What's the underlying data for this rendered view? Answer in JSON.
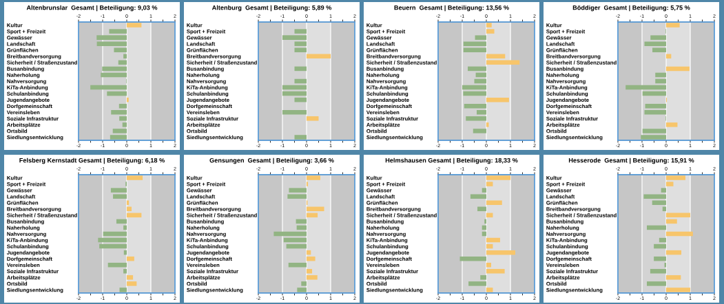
{
  "chart_data": [
    {
      "type": "bar",
      "orientation": "horizontal",
      "title": "Altenbrunslar  Gesamt | Beteiligung: 9,03 %",
      "categories": [
        "Kultur",
        "Sport + Freizeit",
        "Gewässer",
        "Landschaft",
        "Grünflächen",
        "Breitbandversorgung",
        "Sicherheit / Straßenzustand",
        "Busanbindung",
        "Naherholung",
        "Nahversorgung",
        "KiTa-Anbindung",
        "Schulanbindung",
        "Jugendangebote",
        "Dorfgemeinschaft",
        "Vereinsleben",
        "Soziale Infrastruktur",
        "Arbeitsplätze",
        "Ortsbild",
        "Siedlungsentwicklung"
      ],
      "values": [
        0.61,
        -0.73,
        -1.25,
        -1.24,
        -0.53,
        -0.14,
        -0.35,
        -1.02,
        -1.08,
        -0.02,
        -1.51,
        -0.82,
        0.08,
        -0.32,
        -0.65,
        -0.31,
        -0.18,
        -0.58,
        -0.69
      ],
      "colors": [
        "#f7c56b",
        "#92b483",
        "#92b483",
        "#92b483",
        "#92b483",
        "#92b483",
        "#92b483",
        "#92b483",
        "#92b483",
        "#92b483",
        "#92b483",
        "#92b483",
        "#f7c56b",
        "#92b483",
        "#92b483",
        "#92b483",
        "#92b483",
        "#92b483",
        "#92b483"
      ],
      "xlim": [
        -2,
        2
      ],
      "xticks": [
        -2,
        {
          "value": -1.5,
          "label": null
        },
        -1,
        {
          "value": -0.5,
          "label": null
        },
        0,
        {
          "value": 0.5,
          "label": null
        },
        1,
        {
          "value": 1.5,
          "label": null
        },
        2
      ],
      "x2lim": [
        -2,
        2
      ],
      "x2ticks": [
        -2,
        {
          "value": -1.5,
          "label": null
        },
        -1,
        {
          "value": -0.5,
          "label": null
        },
        0,
        {
          "value": 0.5,
          "label": null
        },
        1,
        {
          "value": 1.5,
          "label": null
        },
        2
      ],
      "grid": "x",
      "bands": [
        {
          "axis": "x",
          "from": -1,
          "to": 0,
          "color": "#d3d3d3"
        },
        {
          "axis": "x",
          "from": 0,
          "to": 1,
          "color": "#dfdfdf"
        }
      ]
    },
    {
      "type": "bar",
      "orientation": "horizontal",
      "title": "Altenburg  Gesamt | Beteiligung: 5,89 %",
      "categories": [
        "Kultur",
        "Sport + Freizeit",
        "Gewässer",
        "Landschaft",
        "Grünflächen",
        "Breitbandversorgung",
        "Sicherheit / Straßenzustand",
        "Busanbindung",
        "Naherholung",
        "Nahversorgung",
        "KiTa-Anbindung",
        "Schulanbindung",
        "Jugendangebote",
        "Dorfgemeinschaft",
        "Vereinsleben",
        "Soziale Infrastruktur",
        "Arbeitsplätze",
        "Ortsbild",
        "Siedlungsentwicklung"
      ],
      "values": [
        0,
        -0.5,
        -1.0,
        -0.5,
        -0.5,
        1.0,
        0,
        -0.5,
        0,
        -0.5,
        -1.0,
        -1.0,
        -0.5,
        0,
        -1.0,
        0.5,
        0,
        0,
        -0.5
      ],
      "colors": [
        "#92b483",
        "#92b483",
        "#92b483",
        "#92b483",
        "#92b483",
        "#f7c56b",
        "#92b483",
        "#92b483",
        "#92b483",
        "#92b483",
        "#92b483",
        "#92b483",
        "#92b483",
        "#92b483",
        "#92b483",
        "#f7c56b",
        "#92b483",
        "#92b483",
        "#92b483"
      ],
      "xlim": [
        -2,
        2
      ],
      "xticks": [
        -2,
        {
          "value": -1.5,
          "label": null
        },
        -1,
        {
          "value": -0.5,
          "label": null
        },
        0,
        {
          "value": 0.5,
          "label": null
        },
        1,
        {
          "value": 1.5,
          "label": null
        },
        2
      ],
      "x2lim": [
        -2,
        2
      ],
      "x2ticks": [
        -2,
        {
          "value": -1.5,
          "label": null
        },
        -1,
        {
          "value": -0.5,
          "label": null
        },
        0,
        {
          "value": 0.5,
          "label": null
        },
        1,
        {
          "value": 1.5,
          "label": null
        },
        2
      ],
      "grid": "x",
      "bands": [
        {
          "axis": "x",
          "from": -1,
          "to": 0,
          "color": "#d3d3d3"
        },
        {
          "axis": "x",
          "from": 0,
          "to": 1,
          "color": "#dfdfdf"
        }
      ]
    },
    {
      "type": "bar",
      "orientation": "horizontal",
      "title": "Beuern  Gesamt | Beteiligung: 13,56 %",
      "categories": [
        "Kultur",
        "Sport + Freizeit",
        "Gewässer",
        "Landschaft",
        "Grünflächen",
        "Breitbandversorgung",
        "Sicherheit / Straßenzustand",
        "Busanbindung",
        "Naherholung",
        "Nahversorgung",
        "KiTa-Anbindung",
        "Schulanbindung",
        "Jugendangebote",
        "Dorfgemeinschaft",
        "Vereinsleben",
        "Soziale Infrastruktur",
        "Arbeitsplätze",
        "Ortsbild",
        "Siedlungsentwicklung"
      ],
      "values": [
        0.22,
        0.33,
        -0.47,
        -0.95,
        -0.95,
        0.78,
        1.38,
        -0.77,
        -0.44,
        -0.5,
        -1.0,
        -0.96,
        0.94,
        -0.92,
        -0.4,
        -0.85,
        0.1,
        -0.55,
        0
      ],
      "colors": [
        "#f7c56b",
        "#f7c56b",
        "#92b483",
        "#92b483",
        "#92b483",
        "#f7c56b",
        "#f7c56b",
        "#92b483",
        "#92b483",
        "#92b483",
        "#92b483",
        "#92b483",
        "#f7c56b",
        "#92b483",
        "#92b483",
        "#92b483",
        "#f7c56b",
        "#92b483",
        "#92b483"
      ],
      "xlim": [
        -2,
        2
      ],
      "xticks": [
        -2,
        {
          "value": -1.5,
          "label": null
        },
        -1,
        {
          "value": -0.5,
          "label": null
        },
        0,
        {
          "value": 0.5,
          "label": null
        },
        1,
        {
          "value": 1.5,
          "label": null
        },
        2
      ],
      "x2lim": [
        -2,
        2
      ],
      "x2ticks": [
        -2,
        {
          "value": -1.5,
          "label": null
        },
        -1,
        {
          "value": -0.5,
          "label": null
        },
        0,
        {
          "value": 0.5,
          "label": null
        },
        1,
        {
          "value": 1.5,
          "label": null
        },
        2
      ],
      "grid": "x",
      "bands": [
        {
          "axis": "x",
          "from": -1,
          "to": 0,
          "color": "#d3d3d3"
        },
        {
          "axis": "x",
          "from": 0,
          "to": 1,
          "color": "#dfdfdf"
        }
      ]
    },
    {
      "type": "bar",
      "orientation": "horizontal",
      "title": "Böddiger  Gesamt | Beteiligung: 5,75 %",
      "categories": [
        "Kultur",
        "Sport + Freizeit",
        "Gewässer",
        "Landschaft",
        "Grünflächen",
        "Breitbandversorgung",
        "Sicherheit / Straßenzustand",
        "Busanbindung",
        "Naherholung",
        "Nahversorgung",
        "KiTa-Anbindung",
        "Schulanbindung",
        "Jugendangebote",
        "Dorfgemeinschaft",
        "Vereinsleben",
        "Soziale Infrastruktur",
        "Arbeitsplätze",
        "Ortsbild",
        "Siedlungsentwicklung"
      ],
      "values": [
        0.56,
        -0.02,
        -0.65,
        -0.9,
        -0.57,
        0.21,
        0,
        0.97,
        -0.45,
        -0.45,
        -1.68,
        -0.98,
        0.03,
        -0.87,
        -0.9,
        -0.02,
        0.47,
        -0.98,
        -1.05
      ],
      "colors": [
        "#f7c56b",
        "#92b483",
        "#92b483",
        "#92b483",
        "#92b483",
        "#f7c56b",
        "#92b483",
        "#f7c56b",
        "#92b483",
        "#92b483",
        "#92b483",
        "#92b483",
        "#f7c56b",
        "#92b483",
        "#92b483",
        "#92b483",
        "#f7c56b",
        "#92b483",
        "#92b483"
      ],
      "xlim": [
        -2,
        2
      ],
      "xticks": [
        -2,
        {
          "value": -1.5,
          "label": null
        },
        -1,
        {
          "value": -0.5,
          "label": null
        },
        0,
        {
          "value": 0.5,
          "label": null
        },
        1,
        {
          "value": 1.5,
          "label": null
        },
        2
      ],
      "x2lim": [
        -2,
        2
      ],
      "x2ticks": [
        -2,
        {
          "value": -1.5,
          "label": null
        },
        -1,
        {
          "value": -0.5,
          "label": null
        },
        0,
        {
          "value": 0.5,
          "label": null
        },
        1,
        {
          "value": 1.5,
          "label": null
        },
        2
      ],
      "grid": "x",
      "bands": [
        {
          "axis": "x",
          "from": -1,
          "to": 0,
          "color": "#d3d3d3"
        },
        {
          "axis": "x",
          "from": 0,
          "to": 1,
          "color": "#dfdfdf"
        }
      ]
    },
    {
      "type": "bar",
      "orientation": "horizontal",
      "title": "Felsberg Kernstadt Gesamt | Beteiligung: 6,18 %",
      "categories": [
        "Kultur",
        "Sport + Freizeit",
        "Gewässer",
        "Landschaft",
        "Grünflächen",
        "Breitbandversorgung",
        "Sicherheit / Straßenzustand",
        "Busanbindung",
        "Naherholung",
        "Nahversorgung",
        "KiTa-Anbindung",
        "Schulanbindung",
        "Jugendangebote",
        "Dorfgemeinschaft",
        "Vereinsleben",
        "Soziale Infrastruktur",
        "Arbeitsplätze",
        "Ortsbild",
        "Siedlungsentwicklung"
      ],
      "values": [
        0.66,
        -0.05,
        -0.66,
        -0.57,
        0.09,
        0.2,
        0.61,
        -0.43,
        -0.14,
        -0.98,
        -1.19,
        -1.14,
        -0.12,
        0.31,
        -0.78,
        -0.14,
        0.26,
        0.41,
        -0.3
      ],
      "colors": [
        "#f7c56b",
        "#92b483",
        "#92b483",
        "#92b483",
        "#f7c56b",
        "#f7c56b",
        "#f7c56b",
        "#92b483",
        "#92b483",
        "#92b483",
        "#92b483",
        "#92b483",
        "#92b483",
        "#f7c56b",
        "#92b483",
        "#92b483",
        "#f7c56b",
        "#f7c56b",
        "#92b483"
      ],
      "xlim": [
        -2,
        2
      ],
      "xticks": [
        -2,
        {
          "value": -1.5,
          "label": null
        },
        -1,
        {
          "value": -0.5,
          "label": null
        },
        0,
        {
          "value": 0.5,
          "label": null
        },
        1,
        {
          "value": 1.5,
          "label": null
        },
        2
      ],
      "x2lim": [
        -2,
        2
      ],
      "x2ticks": [
        -2,
        {
          "value": -1.5,
          "label": null
        },
        -1,
        {
          "value": -0.5,
          "label": null
        },
        0,
        {
          "value": 0.5,
          "label": null
        },
        1,
        {
          "value": 1.5,
          "label": null
        },
        2
      ],
      "grid": "x",
      "bands": [
        {
          "axis": "x",
          "from": -1,
          "to": 0,
          "color": "#d3d3d3"
        },
        {
          "axis": "x",
          "from": 0,
          "to": 1,
          "color": "#dfdfdf"
        }
      ]
    },
    {
      "type": "bar",
      "orientation": "horizontal",
      "title": "Gensungen  Gesamt | Beteiligung: 3,66 %",
      "categories": [
        "Kultur",
        "Sport + Freizeit",
        "Gewässer",
        "Landschaft",
        "Grünflächen",
        "Breitbandversorgung",
        "Sicherheit / Straßenzustand",
        "Busanbindung",
        "Naherholung",
        "Nahversorgung",
        "KiTa-Anbindung",
        "Schulanbindung",
        "Jugendangebote",
        "Dorfgemeinschaft",
        "Vereinsleben",
        "Soziale Infrastruktur",
        "Arbeitsplätze",
        "Ortsbild",
        "Siedlungsentwicklung"
      ],
      "values": [
        0.57,
        0.06,
        -0.73,
        -0.79,
        0.04,
        0.73,
        0.46,
        -0.44,
        -0.41,
        -1.36,
        -0.95,
        -0.84,
        0.18,
        0.36,
        -0.75,
        0.23,
        0.45,
        -0.22,
        -0.39
      ],
      "colors": [
        "#f7c56b",
        "#f7c56b",
        "#92b483",
        "#92b483",
        "#f7c56b",
        "#f7c56b",
        "#f7c56b",
        "#92b483",
        "#92b483",
        "#92b483",
        "#92b483",
        "#92b483",
        "#f7c56b",
        "#f7c56b",
        "#92b483",
        "#f7c56b",
        "#f7c56b",
        "#92b483",
        "#92b483"
      ],
      "xlim": [
        -2,
        2
      ],
      "xticks": [
        -2,
        {
          "value": -1.5,
          "label": null
        },
        -1,
        {
          "value": -0.5,
          "label": null
        },
        0,
        {
          "value": 0.5,
          "label": null
        },
        1,
        {
          "value": 1.5,
          "label": null
        },
        2
      ],
      "x2lim": [
        -2,
        2
      ],
      "x2ticks": [
        -2,
        {
          "value": -1.5,
          "label": null
        },
        -1,
        {
          "value": -0.5,
          "label": null
        },
        0,
        {
          "value": 0.5,
          "label": null
        },
        1,
        {
          "value": 1.5,
          "label": null
        },
        2
      ],
      "grid": "x",
      "bands": [
        {
          "axis": "x",
          "from": -1,
          "to": 0,
          "color": "#d3d3d3"
        },
        {
          "axis": "x",
          "from": 0,
          "to": 1,
          "color": "#dfdfdf"
        }
      ]
    },
    {
      "type": "bar",
      "orientation": "horizontal",
      "title": "Helmshausen Gesamt | Beteiligung: 18,33 %",
      "categories": [
        "Kultur",
        "Sport + Freizeit",
        "Gewässer",
        "Landschaft",
        "Grünflächen",
        "Breitbandversorgung",
        "Sicherheit / Straßenzustand",
        "Busanbindung",
        "Naherholung",
        "Nahversorgung",
        "KiTa-Anbindung",
        "Schulanbindung",
        "Jugendangebote",
        "Dorfgemeinschaft",
        "Vereinsleben",
        "Soziale Infrastruktur",
        "Arbeitsplätze",
        "Ortsbild",
        "Siedlungsentwicklung"
      ],
      "values": [
        1.0,
        0.27,
        -0.18,
        -0.66,
        0.65,
        -0.37,
        0.27,
        -0.08,
        -0.18,
        -0.18,
        0.57,
        0.27,
        1.2,
        -1.1,
        0.2,
        0.76,
        -0.25,
        -0.74,
        0.27
      ],
      "colors": [
        "#f7c56b",
        "#f7c56b",
        "#92b483",
        "#92b483",
        "#f7c56b",
        "#92b483",
        "#f7c56b",
        "#92b483",
        "#92b483",
        "#92b483",
        "#f7c56b",
        "#f7c56b",
        "#f7c56b",
        "#92b483",
        "#f7c56b",
        "#f7c56b",
        "#92b483",
        "#92b483",
        "#f7c56b"
      ],
      "xlim": [
        -2,
        2
      ],
      "xticks": [
        -2,
        {
          "value": -1.5,
          "label": null
        },
        -1,
        {
          "value": -0.5,
          "label": null
        },
        0,
        {
          "value": 0.5,
          "label": null
        },
        1,
        {
          "value": 1.5,
          "label": null
        },
        2
      ],
      "x2lim": [
        -2,
        2
      ],
      "x2ticks": [
        -2,
        {
          "value": -1.5,
          "label": null
        },
        -1,
        {
          "value": -0.5,
          "label": null
        },
        0,
        {
          "value": 0.5,
          "label": null
        },
        1,
        {
          "value": 1.5,
          "label": null
        },
        2
      ],
      "grid": "x",
      "bands": [
        {
          "axis": "x",
          "from": -1,
          "to": 0,
          "color": "#d3d3d3"
        },
        {
          "axis": "x",
          "from": 0,
          "to": 1,
          "color": "#dfdfdf"
        }
      ]
    },
    {
      "type": "bar",
      "orientation": "horizontal",
      "title": "Hesserode  Gesamt | Beteiligung: 15,91 %",
      "categories": [
        "Kultur",
        "Sport + Freizeit",
        "Gewässer",
        "Landschaft",
        "Grünflächen",
        "Breitbandversorgung",
        "Sicherheit / Straßenzustand",
        "Busanbindung",
        "Naherholung",
        "Nahversorgung",
        "KiTa-Anbindung",
        "Schulanbindung",
        "Jugendangebote",
        "Dorfgemeinschaft",
        "Vereinsleben",
        "Soziale Infrastruktur",
        "Arbeitsplätze",
        "Ortsbild",
        "Siedlungsentwicklung"
      ],
      "values": [
        0.8,
        0.3,
        -0.21,
        -0.93,
        -0.58,
        -0.15,
        1.0,
        0.45,
        -0.8,
        1.11,
        -0.29,
        -0.51,
        0.63,
        -0.51,
        -0.07,
        -0.66,
        0.61,
        -0.8,
        1.0
      ],
      "colors": [
        "#f7c56b",
        "#f7c56b",
        "#92b483",
        "#92b483",
        "#92b483",
        "#92b483",
        "#f7c56b",
        "#f7c56b",
        "#92b483",
        "#f7c56b",
        "#92b483",
        "#92b483",
        "#f7c56b",
        "#92b483",
        "#92b483",
        "#92b483",
        "#f7c56b",
        "#92b483",
        "#f7c56b"
      ],
      "xlim": [
        -2,
        2
      ],
      "xticks": [
        -2,
        {
          "value": -1.5,
          "label": null
        },
        -1,
        {
          "value": -0.5,
          "label": null
        },
        0,
        {
          "value": 0.5,
          "label": null
        },
        1,
        {
          "value": 1.5,
          "label": null
        },
        2
      ],
      "x2lim": [
        -2,
        2
      ],
      "x2ticks": [
        -2,
        {
          "value": -1.5,
          "label": null
        },
        -1,
        {
          "value": -0.5,
          "label": null
        },
        0,
        {
          "value": 0.5,
          "label": null
        },
        1,
        {
          "value": 1.5,
          "label": null
        },
        2
      ],
      "grid": "x",
      "bands": [
        {
          "axis": "x",
          "from": -1,
          "to": 0,
          "color": "#d3d3d3"
        },
        {
          "axis": "x",
          "from": 0,
          "to": 1,
          "color": "#dfdfdf"
        }
      ]
    }
  ]
}
